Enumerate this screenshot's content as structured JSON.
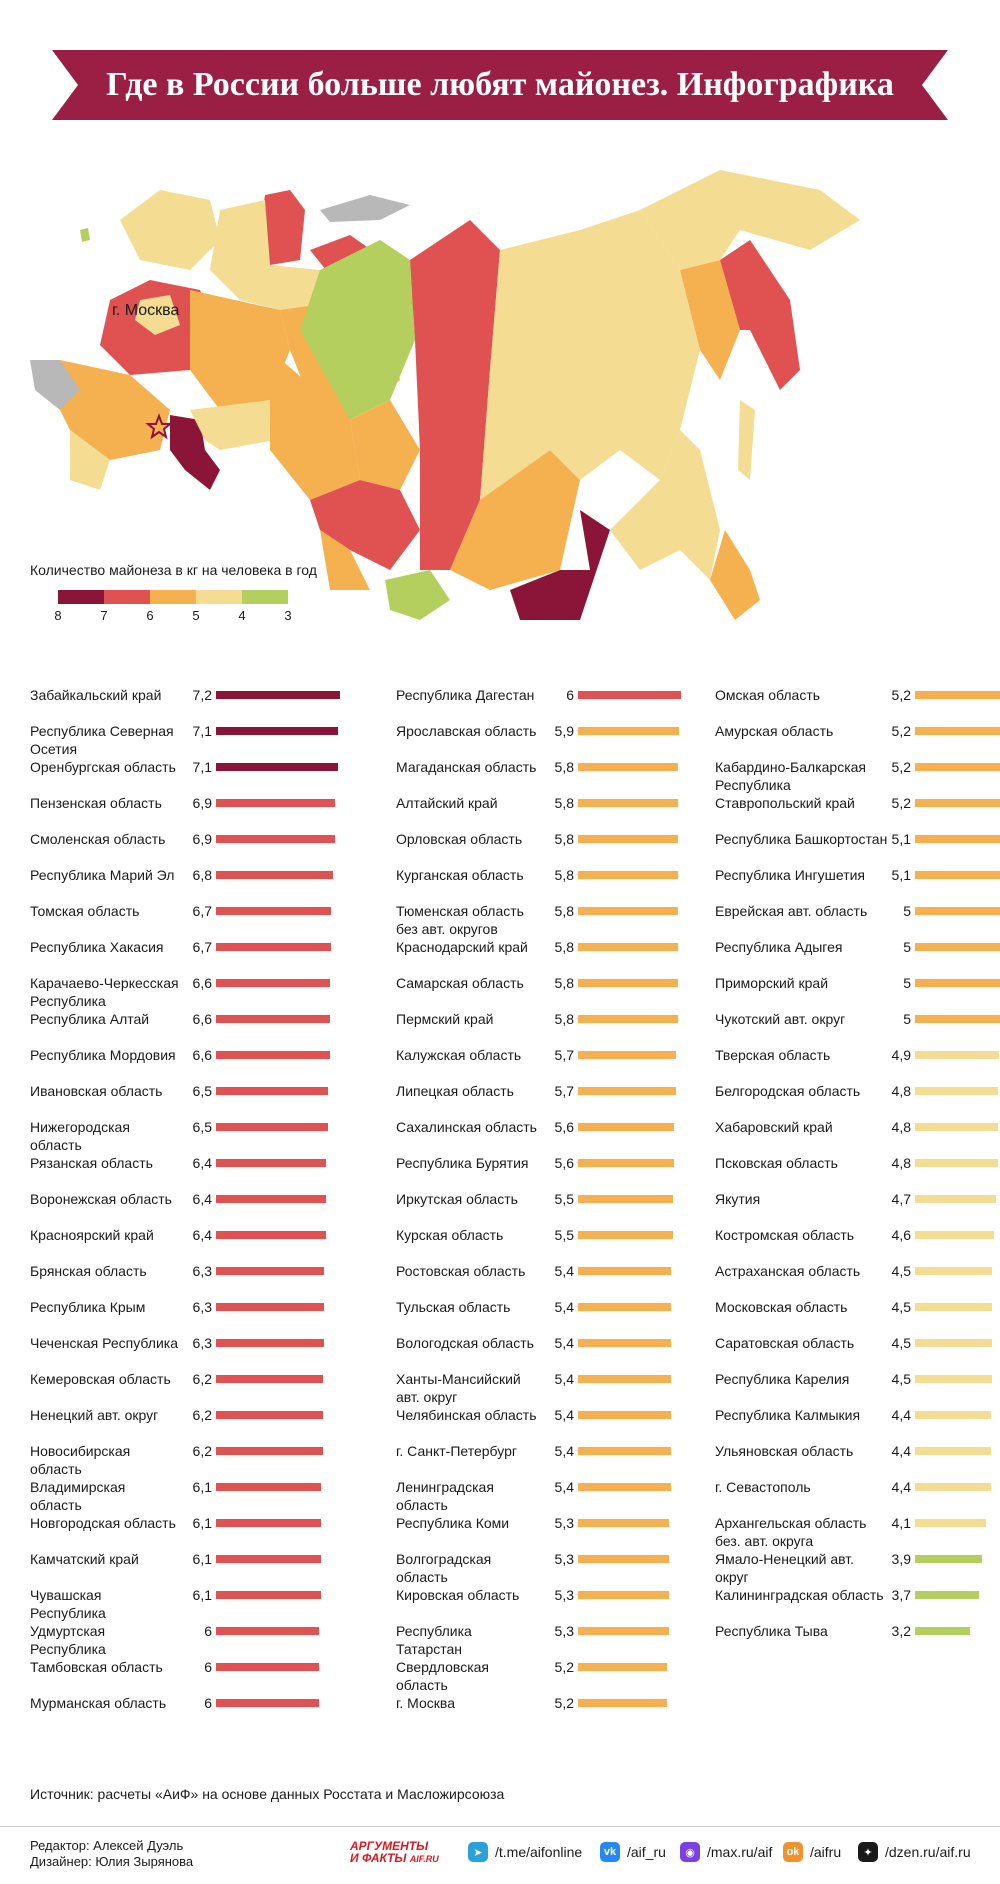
{
  "header": {
    "title": "Где в России больше любят майонез. Инфографика"
  },
  "map": {
    "city_label": "г. Москва"
  },
  "legend": {
    "title": "Количество майонеза в кг на человека в год",
    "ticks": [
      "8",
      "7",
      "6",
      "5",
      "4",
      "3"
    ],
    "colors": [
      "#8a1538",
      "#e05252",
      "#f5b04f",
      "#f4dc92",
      "#b5cf5e"
    ]
  },
  "colors": {
    "banner": "#9b1f45",
    "band_8_7": "#8a1538",
    "band_7_6": "#e05252",
    "band_6_5": "#f5b04f",
    "band_5_4": "#f4dc92",
    "band_4_3": "#b5cf5e",
    "no_data": "#b8b8b8"
  },
  "chart_data": {
    "type": "bar",
    "orientation": "horizontal",
    "unit": "кг на человека в год",
    "columns": [
      [
        {
          "name": "Забайкальский край",
          "value": 7.2,
          "label": "7,2"
        },
        {
          "name": "Республика Северная Осетия",
          "value": 7.1,
          "label": "7,1"
        },
        {
          "name": "Оренбургская область",
          "value": 7.1,
          "label": "7,1"
        },
        {
          "name": "Пензенская область",
          "value": 6.9,
          "label": "6,9"
        },
        {
          "name": "Смоленская область",
          "value": 6.9,
          "label": "6,9"
        },
        {
          "name": "Республика Марий Эл",
          "value": 6.8,
          "label": "6,8"
        },
        {
          "name": "Томская область",
          "value": 6.7,
          "label": "6,7"
        },
        {
          "name": "Республика Хакасия",
          "value": 6.7,
          "label": "6,7"
        },
        {
          "name": "Карачаево-Черкесская Республика",
          "value": 6.6,
          "label": "6,6"
        },
        {
          "name": "Республика Алтай",
          "value": 6.6,
          "label": "6,6"
        },
        {
          "name": "Республика Мордовия",
          "value": 6.6,
          "label": "6,6"
        },
        {
          "name": "Ивановская область",
          "value": 6.5,
          "label": "6,5"
        },
        {
          "name": "Нижегородская область",
          "value": 6.5,
          "label": "6,5"
        },
        {
          "name": "Рязанская область",
          "value": 6.4,
          "label": "6,4"
        },
        {
          "name": "Воронежская область",
          "value": 6.4,
          "label": "6,4"
        },
        {
          "name": "Красноярский край",
          "value": 6.4,
          "label": "6,4"
        },
        {
          "name": "Брянская область",
          "value": 6.3,
          "label": "6,3"
        },
        {
          "name": "Республика Крым",
          "value": 6.3,
          "label": "6,3"
        },
        {
          "name": "Чеченская Республика",
          "value": 6.3,
          "label": "6,3"
        },
        {
          "name": "Кемеровская область",
          "value": 6.2,
          "label": "6,2"
        },
        {
          "name": "Ненецкий авт. округ",
          "value": 6.2,
          "label": "6,2"
        },
        {
          "name": "Новосибирская область",
          "value": 6.2,
          "label": "6,2"
        },
        {
          "name": "Владимирская область",
          "value": 6.1,
          "label": "6,1"
        },
        {
          "name": "Новгородская область",
          "value": 6.1,
          "label": "6,1"
        },
        {
          "name": "Камчатский край",
          "value": 6.1,
          "label": "6,1"
        },
        {
          "name": "Чувашская Республика",
          "value": 6.1,
          "label": "6,1"
        },
        {
          "name": "Удмуртская Республика",
          "value": 6.0,
          "label": "6"
        },
        {
          "name": "Тамбовская область",
          "value": 6.0,
          "label": "6"
        },
        {
          "name": "Мурманская область",
          "value": 6.0,
          "label": "6"
        }
      ],
      [
        {
          "name": "Республика Дагестан",
          "value": 6.0,
          "label": "6"
        },
        {
          "name": "Ярославская область",
          "value": 5.9,
          "label": "5,9"
        },
        {
          "name": "Магаданская область",
          "value": 5.8,
          "label": "5,8"
        },
        {
          "name": "Алтайский край",
          "value": 5.8,
          "label": "5,8"
        },
        {
          "name": "Орловская область",
          "value": 5.8,
          "label": "5,8"
        },
        {
          "name": "Курганская область",
          "value": 5.8,
          "label": "5,8"
        },
        {
          "name": "Тюменская область без авт. округов",
          "value": 5.8,
          "label": "5,8"
        },
        {
          "name": "Краснодарский край",
          "value": 5.8,
          "label": "5,8"
        },
        {
          "name": "Самарская область",
          "value": 5.8,
          "label": "5,8"
        },
        {
          "name": "Пермский край",
          "value": 5.8,
          "label": "5,8"
        },
        {
          "name": "Калужская область",
          "value": 5.7,
          "label": "5,7"
        },
        {
          "name": "Липецкая область",
          "value": 5.7,
          "label": "5,7"
        },
        {
          "name": "Сахалинская область",
          "value": 5.6,
          "label": "5,6"
        },
        {
          "name": "Республика Бурятия",
          "value": 5.6,
          "label": "5,6"
        },
        {
          "name": "Иркутская область",
          "value": 5.5,
          "label": "5,5"
        },
        {
          "name": "Курская область",
          "value": 5.5,
          "label": "5,5"
        },
        {
          "name": "Ростовская область",
          "value": 5.4,
          "label": "5,4"
        },
        {
          "name": "Тульская область",
          "value": 5.4,
          "label": "5,4"
        },
        {
          "name": "Вологодская область",
          "value": 5.4,
          "label": "5,4"
        },
        {
          "name": "Ханты-Мансийский авт. округ",
          "value": 5.4,
          "label": "5,4"
        },
        {
          "name": "Челябинская область",
          "value": 5.4,
          "label": "5,4"
        },
        {
          "name": "г. Санкт-Петербург",
          "value": 5.4,
          "label": "5,4"
        },
        {
          "name": "Ленинградская область",
          "value": 5.4,
          "label": "5,4"
        },
        {
          "name": "Республика Коми",
          "value": 5.3,
          "label": "5,3"
        },
        {
          "name": "Волгоградская область",
          "value": 5.3,
          "label": "5,3"
        },
        {
          "name": "Кировская область",
          "value": 5.3,
          "label": "5,3"
        },
        {
          "name": "Республика Татарстан",
          "value": 5.3,
          "label": "5,3"
        },
        {
          "name": "Свердловская область",
          "value": 5.2,
          "label": "5,2"
        },
        {
          "name": "г. Москва",
          "value": 5.2,
          "label": "5,2"
        }
      ],
      [
        {
          "name": "Омская область",
          "value": 5.2,
          "label": "5,2"
        },
        {
          "name": "Амурская область",
          "value": 5.2,
          "label": "5,2"
        },
        {
          "name": "Кабардино-Балкарская Республика",
          "value": 5.2,
          "label": "5,2"
        },
        {
          "name": "Ставропольский край",
          "value": 5.2,
          "label": "5,2"
        },
        {
          "name": "Республика Башкортостан",
          "value": 5.1,
          "label": "5,1"
        },
        {
          "name": "Республика Ингушетия",
          "value": 5.1,
          "label": "5,1"
        },
        {
          "name": "Еврейская авт. область",
          "value": 5.0,
          "label": "5"
        },
        {
          "name": "Республика Адыгея",
          "value": 5.0,
          "label": "5"
        },
        {
          "name": "Приморский край",
          "value": 5.0,
          "label": "5"
        },
        {
          "name": "Чукотский авт. округ",
          "value": 5.0,
          "label": "5"
        },
        {
          "name": "Тверская область",
          "value": 4.9,
          "label": "4,9"
        },
        {
          "name": "Белгородская область",
          "value": 4.8,
          "label": "4,8"
        },
        {
          "name": "Хабаровский край",
          "value": 4.8,
          "label": "4,8"
        },
        {
          "name": "Псковская область",
          "value": 4.8,
          "label": "4,8"
        },
        {
          "name": "Якутия",
          "value": 4.7,
          "label": "4,7"
        },
        {
          "name": "Костромская область",
          "value": 4.6,
          "label": "4,6"
        },
        {
          "name": "Астраханская область",
          "value": 4.5,
          "label": "4,5"
        },
        {
          "name": "Московская область",
          "value": 4.5,
          "label": "4,5"
        },
        {
          "name": "Саратовская область",
          "value": 4.5,
          "label": "4,5"
        },
        {
          "name": "Республика Карелия",
          "value": 4.5,
          "label": "4,5"
        },
        {
          "name": "Республика Калмыкия",
          "value": 4.4,
          "label": "4,4"
        },
        {
          "name": "Ульяновская область",
          "value": 4.4,
          "label": "4,4"
        },
        {
          "name": "г. Севастополь",
          "value": 4.4,
          "label": "4,4"
        },
        {
          "name": "Архангельская область без. авт. округа",
          "value": 4.1,
          "label": "4,1"
        },
        {
          "name": "Ямало-Ненецкий авт. округ",
          "value": 3.9,
          "label": "3,9"
        },
        {
          "name": "Калининградская область",
          "value": 3.7,
          "label": "3,7"
        },
        {
          "name": "Республика Тыва",
          "value": 3.2,
          "label": "3,2"
        }
      ]
    ]
  },
  "footer": {
    "source": "Источник: расчеты «АиФ» на основе данных Росстата и Масложирсоюза",
    "editor": "Редактор: Алексей Дуэль",
    "designer": "Дизайнер: Юлия Зырянова",
    "brand_line1": "АРГУМЕНТЫ",
    "brand_line2": "И ФАКТЫ",
    "brand_site": "AIF.RU",
    "social": [
      {
        "icon": "telegram-icon",
        "text": "/t.me/aifonline",
        "color": "#2aa1da",
        "glyph": "➤"
      },
      {
        "icon": "vk-icon",
        "text": "/aif_ru",
        "color": "#2787f5",
        "glyph": "vk"
      },
      {
        "icon": "max-icon",
        "text": "/max.ru/aif",
        "color": "#7b3fe4",
        "glyph": "◉"
      },
      {
        "icon": "odnoklassniki-icon",
        "text": "/aifru",
        "color": "#f2922e",
        "glyph": "ok"
      },
      {
        "icon": "dzen-icon",
        "text": "/dzen.ru/aif.ru",
        "color": "#1a1a1a",
        "glyph": "✦"
      }
    ]
  }
}
